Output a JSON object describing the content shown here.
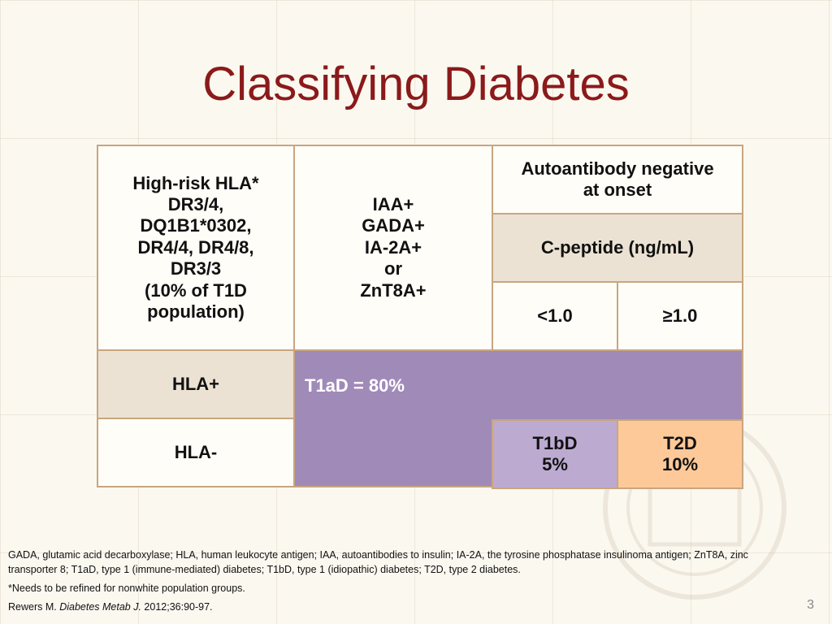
{
  "slide": {
    "title": "Classifying Diabetes",
    "page_number": "3"
  },
  "table": {
    "hla_header": [
      "High-risk HLA*",
      "DR3/4,",
      "DQ1B1*0302,",
      "DR4/4, DR4/8,",
      "DR3/3",
      "(10% of T1D",
      "population)"
    ],
    "autoantibody_header": [
      "IAA+",
      "GADA+",
      "IA-2A+",
      "or",
      "ZnT8A+"
    ],
    "negative_header": [
      "Autoantibody negative",
      "at onset"
    ],
    "cpeptide_header": "C-peptide (ng/mL)",
    "cpeptide_low": "<1.0",
    "cpeptide_high": "≥1.0",
    "row_hla_pos": "HLA+",
    "row_hla_neg": "HLA-",
    "t1ad": "T1aD = 80%",
    "t1bd": [
      "T1bD",
      "5%"
    ],
    "t2d": [
      "T2D",
      "10%"
    ]
  },
  "footnotes": {
    "abbreviations": "GADA, glutamic acid decarboxylase; HLA, human leukocyte antigen; IAA, autoantibodies to insulin; IA-2A, the tyrosine phosphatase insulinoma antigen; ZnT8A, zinc transporter 8; T1aD, type 1 (immune-mediated)  diabetes; T1bD, type 1 (idiopathic) diabetes; T2D, type 2 diabetes.",
    "note": "*Needs to be refined for nonwhite population groups.",
    "ref_author": "Rewers M. ",
    "ref_journal": "Diabetes Metab J.",
    "ref_rest": " 2012;36:90-97."
  },
  "colors": {
    "title": "#8b1a1a",
    "border": "#c8a67e",
    "t1ad": "#a08ab8",
    "t1bd": "#bcaad0",
    "t2d": "#fdc998",
    "header_tan": "#ece2d3"
  }
}
